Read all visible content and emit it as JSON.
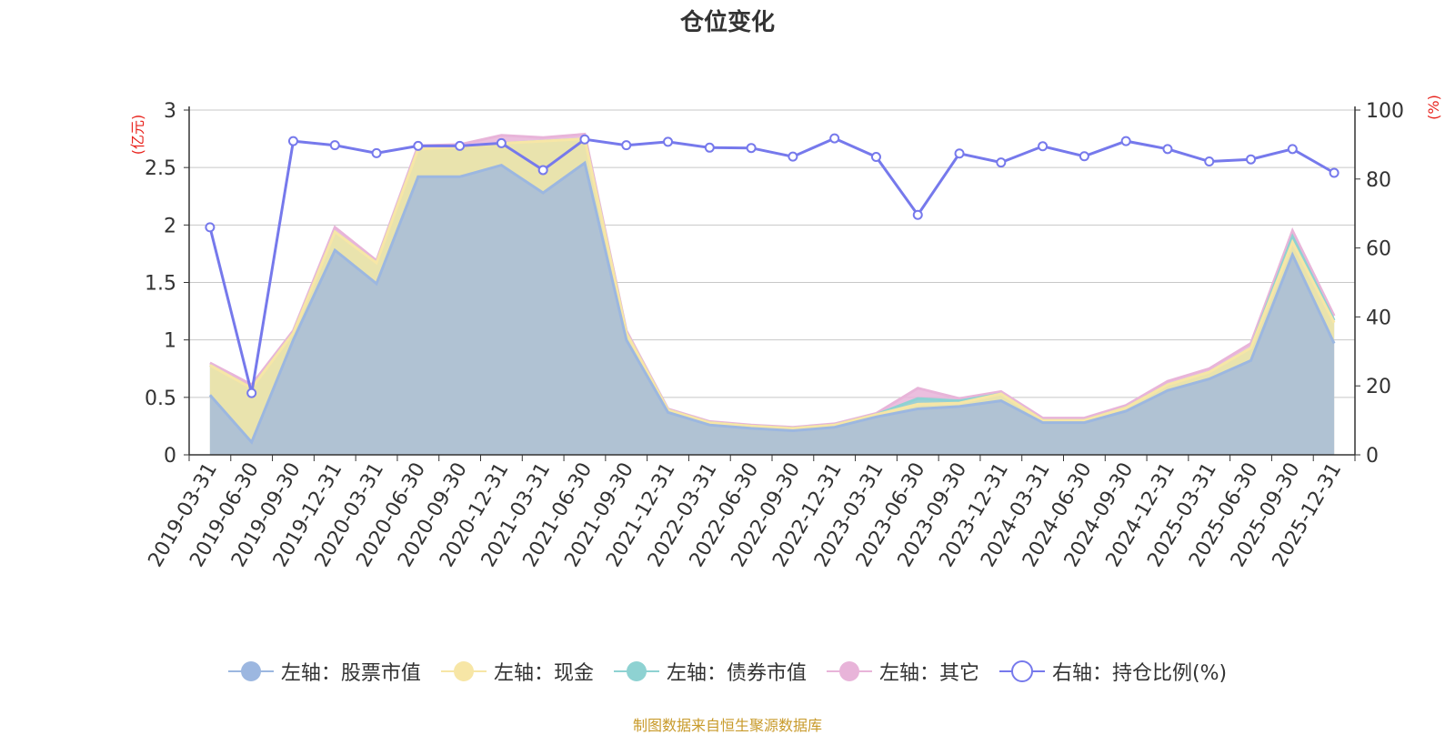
{
  "page_title": "仓位变化",
  "source_note": "制图数据来自恒生聚源数据库",
  "colors": {
    "stock": "#9cb7e0",
    "cash": "#f7e6a6",
    "bond": "#8ed2d2",
    "other": "#e8b4d9",
    "ratio": "#7679ec",
    "unit": "#e8231d"
  },
  "legend": [
    {
      "key": "stock",
      "label": "左轴：股票市值"
    },
    {
      "key": "cash",
      "label": "左轴：现金"
    },
    {
      "key": "bond",
      "label": "左轴：债券市值"
    },
    {
      "key": "other",
      "label": "左轴：其它"
    },
    {
      "key": "ratio",
      "label": "右轴：持仓比例(%)"
    }
  ],
  "chart_data": {
    "type": "area",
    "title": "仓位变化",
    "ylabel_left": "(亿元)",
    "ylabel_right": "(%)",
    "ylim_left": [
      0,
      3
    ],
    "ylim_right": [
      0,
      100
    ],
    "yticks_left": [
      "0",
      "0.5",
      "1",
      "1.5",
      "2",
      "2.5",
      "3"
    ],
    "yticks_right": [
      "0",
      "20",
      "40",
      "60",
      "80",
      "100"
    ],
    "categories": [
      "2019-03-31",
      "2019-06-30",
      "2019-09-30",
      "2019-12-31",
      "2020-03-31",
      "2020-06-30",
      "2020-09-30",
      "2020-12-31",
      "2021-03-31",
      "2021-06-30",
      "2021-09-30",
      "2021-12-31",
      "2022-03-31",
      "2022-06-30",
      "2022-09-30",
      "2022-12-31",
      "2023-03-31",
      "2023-06-30",
      "2023-09-30",
      "2023-12-31",
      "2024-03-31",
      "2024-06-30",
      "2024-09-30",
      "2024-12-31",
      "2025-03-31",
      "2025-06-30",
      "2025-09-30",
      "2025-12-31"
    ],
    "series": [
      {
        "name": "左轴：股票市值",
        "axis": "left",
        "stack": true,
        "values": [
          0.52,
          0.11,
          1.0,
          1.78,
          1.49,
          2.42,
          2.42,
          2.52,
          2.28,
          2.54,
          1.0,
          0.37,
          0.26,
          0.23,
          0.21,
          0.24,
          0.33,
          0.4,
          0.42,
          0.47,
          0.28,
          0.28,
          0.38,
          0.56,
          0.66,
          0.82,
          1.74,
          0.97
        ]
      },
      {
        "name": "左轴：现金",
        "axis": "left",
        "stack": true,
        "values": [
          0.26,
          0.47,
          0.06,
          0.16,
          0.18,
          0.24,
          0.26,
          0.19,
          0.45,
          0.21,
          0.06,
          0.02,
          0.02,
          0.02,
          0.02,
          0.02,
          0.02,
          0.04,
          0.03,
          0.06,
          0.02,
          0.02,
          0.03,
          0.05,
          0.06,
          0.11,
          0.11,
          0.18
        ]
      },
      {
        "name": "左轴：债券市值",
        "axis": "left",
        "stack": true,
        "values": [
          0.0,
          0.0,
          0.0,
          0.0,
          0.0,
          0.0,
          0.0,
          0.0,
          0.0,
          0.0,
          0.0,
          0.0,
          0.0,
          0.0,
          0.0,
          0.0,
          0.0,
          0.05,
          0.02,
          0.0,
          0.0,
          0.0,
          0.0,
          0.0,
          0.0,
          0.0,
          0.05,
          0.02
        ]
      },
      {
        "name": "左轴：其它",
        "axis": "left",
        "stack": true,
        "values": [
          0.02,
          0.03,
          0.02,
          0.04,
          0.02,
          0.03,
          0.02,
          0.07,
          0.03,
          0.04,
          0.02,
          0.01,
          0.01,
          0.01,
          0.01,
          0.01,
          0.01,
          0.09,
          0.02,
          0.02,
          0.02,
          0.02,
          0.02,
          0.03,
          0.03,
          0.04,
          0.05,
          0.04
        ]
      },
      {
        "name": "右轴：持仓比例(%)",
        "axis": "right",
        "stack": false,
        "values": [
          66.0,
          17.9,
          91.0,
          89.8,
          87.5,
          89.6,
          89.6,
          90.4,
          82.6,
          91.5,
          89.8,
          90.8,
          89.1,
          89.0,
          86.5,
          91.8,
          86.4,
          69.6,
          87.4,
          84.8,
          89.5,
          86.6,
          91.0,
          88.7,
          85.1,
          85.7,
          88.7,
          81.8
        ]
      }
    ]
  }
}
